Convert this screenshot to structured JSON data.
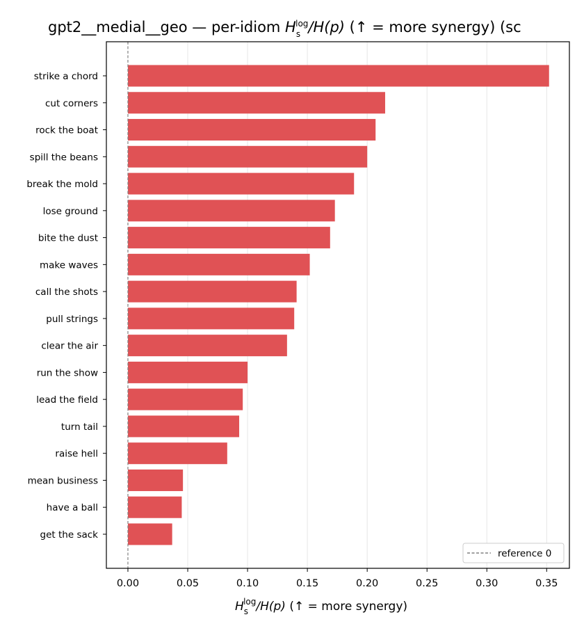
{
  "chart_data": {
    "type": "bar",
    "orientation": "horizontal",
    "title": {
      "prefix": "gpt2__medial__geo — per-idiom ",
      "metric_main": "H",
      "metric_sub": "s",
      "metric_sup": "log",
      "metric_rest": "/H(p)",
      "suffix": "  (↑ = more synergy) (sc"
    },
    "xlabel": {
      "metric_main": "H",
      "metric_sub": "s",
      "metric_sup": "log",
      "metric_rest": "/H(p)",
      "suffix": "  (↑ = more synergy)"
    },
    "ylabel": "",
    "categories": [
      "strike a chord",
      "cut corners",
      "rock the boat",
      "spill the beans",
      "break the mold",
      "lose ground",
      "bite the dust",
      "make waves",
      "call the shots",
      "pull strings",
      "clear the air",
      "run the show",
      "lead the field",
      "turn tail",
      "raise hell",
      "mean business",
      "have a ball",
      "get the sack"
    ],
    "values": [
      0.352,
      0.215,
      0.207,
      0.2,
      0.189,
      0.173,
      0.169,
      0.152,
      0.141,
      0.139,
      0.133,
      0.1,
      0.096,
      0.093,
      0.083,
      0.046,
      0.045,
      0.037
    ],
    "xlim": [
      -0.018,
      0.369
    ],
    "xticks": [
      0.0,
      0.05,
      0.1,
      0.15,
      0.2,
      0.25,
      0.3,
      0.35
    ],
    "xtick_labels": [
      "0.00",
      "0.05",
      "0.10",
      "0.15",
      "0.20",
      "0.25",
      "0.30",
      "0.35"
    ],
    "reference_line": {
      "x": 0,
      "label": "reference 0",
      "style": "dashed",
      "color": "#808080"
    },
    "bar_color": "#e05255",
    "grid": "x-major",
    "legend_placement": "lower-right"
  }
}
